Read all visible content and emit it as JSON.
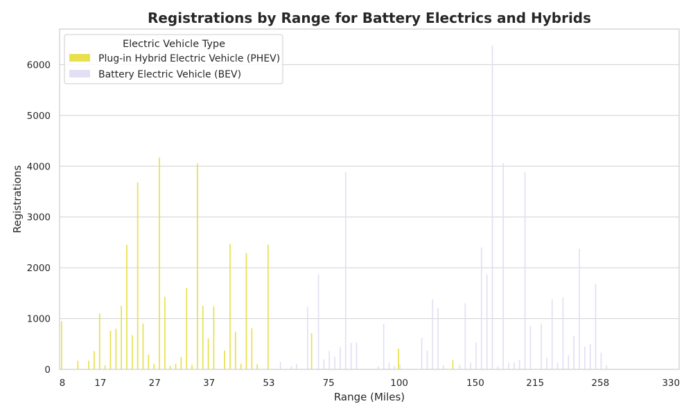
{
  "chart_data": {
    "type": "bar",
    "title": "Registrations by Range for Battery Electrics and Hybrids",
    "xlabel": "Range (Miles)",
    "ylabel": "Registrations",
    "ylim": [
      0,
      6700
    ],
    "yticks": [
      0,
      1000,
      2000,
      3000,
      4000,
      5000,
      6000
    ],
    "grid": "horizontal",
    "legend": {
      "title": "Electric Vehicle Type",
      "position": "top-left"
    },
    "categories": [
      8,
      10,
      12,
      13,
      14,
      15,
      16,
      17,
      18,
      19,
      20,
      21,
      22,
      23,
      24,
      25,
      26,
      27,
      28,
      29,
      30,
      31,
      32,
      33,
      34,
      35,
      36,
      37,
      38,
      39,
      40,
      41,
      42,
      43,
      44,
      47,
      48,
      51,
      53,
      56,
      57,
      58,
      59,
      62,
      65,
      68,
      70,
      72,
      73,
      75,
      76,
      78,
      80,
      81,
      82,
      83,
      84,
      87,
      93,
      95,
      97,
      99,
      100,
      102,
      103,
      107,
      109,
      110,
      111,
      114,
      116,
      124,
      125,
      126,
      133,
      149,
      150,
      151,
      153,
      165,
      170,
      192,
      200,
      203,
      207,
      208,
      210,
      215,
      217,
      220,
      222,
      230,
      233,
      234,
      238,
      239,
      245,
      249,
      250,
      258,
      259,
      260,
      265,
      266,
      270,
      280,
      289,
      291,
      293,
      303,
      308,
      322,
      330,
      337
    ],
    "tick_labels": [
      8,
      17,
      27,
      37,
      53,
      75,
      100,
      150,
      215,
      258,
      330
    ],
    "series": [
      {
        "name": "Plug-in Hybrid Electric Vehicle (PHEV)",
        "color": "#e8e14c",
        "values": [
          950,
          0,
          0,
          170,
          0,
          170,
          360,
          1100,
          80,
          760,
          800,
          1250,
          2450,
          670,
          3680,
          900,
          290,
          110,
          4170,
          1430,
          70,
          110,
          240,
          1600,
          90,
          4050,
          1250,
          610,
          1240,
          0,
          370,
          2470,
          740,
          110,
          2290,
          810,
          100,
          0,
          2450,
          0,
          0,
          0,
          0,
          0,
          0,
          0,
          710,
          0,
          0,
          0,
          0,
          0,
          0,
          0,
          0,
          0,
          0,
          0,
          0,
          0,
          0,
          0,
          410,
          0,
          0,
          0,
          0,
          0,
          0,
          0,
          0,
          0,
          180,
          0,
          0,
          0,
          0,
          0,
          0,
          0,
          0,
          0,
          0,
          0,
          0,
          0,
          0,
          0,
          0,
          0,
          0,
          0,
          0,
          0,
          0,
          0,
          0,
          0,
          0,
          0,
          0,
          0,
          0,
          0,
          0,
          0,
          0,
          0,
          0,
          0,
          0,
          0,
          0,
          0
        ]
      },
      {
        "name": "Battery Electric Vehicle (BEV)",
        "color": "#e2e0f5",
        "values": [
          0,
          0,
          0,
          0,
          0,
          0,
          0,
          0,
          0,
          0,
          0,
          0,
          0,
          0,
          0,
          0,
          0,
          0,
          0,
          0,
          0,
          0,
          0,
          0,
          0,
          0,
          0,
          0,
          0,
          0,
          0,
          0,
          0,
          0,
          0,
          0,
          0,
          0,
          0,
          0,
          150,
          0,
          60,
          110,
          0,
          1230,
          0,
          1870,
          200,
          360,
          250,
          440,
          3880,
          520,
          530,
          0,
          0,
          0,
          60,
          900,
          130,
          70,
          100,
          0,
          0,
          0,
          620,
          370,
          1380,
          1210,
          80,
          0,
          0,
          90,
          1300,
          130,
          530,
          2400,
          1870,
          6370,
          60,
          4060,
          130,
          140,
          190,
          3890,
          850,
          0,
          890,
          230,
          1380,
          130,
          1420,
          280,
          660,
          2370,
          450,
          500,
          1680,
          330,
          80,
          0,
          0,
          0,
          0,
          0,
          0,
          0,
          0,
          0,
          0,
          0,
          0,
          0
        ]
      }
    ]
  }
}
